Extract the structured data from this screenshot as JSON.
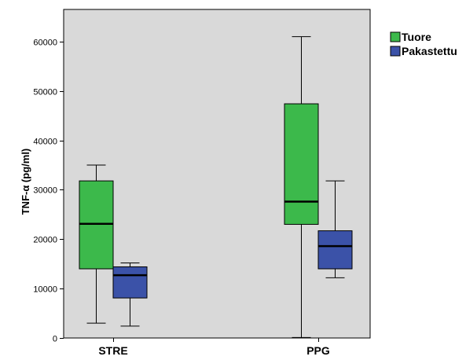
{
  "chart_data": {
    "type": "boxplot",
    "title": "",
    "xlabel": "",
    "ylabel": "TNF-α (pg/ml)",
    "ylim": [
      0,
      66500
    ],
    "yticks": [
      0,
      10000,
      20000,
      30000,
      40000,
      50000,
      60000
    ],
    "yticklabels": [
      "0",
      "10000",
      "20000",
      "30000",
      "40000",
      "50000",
      "60000"
    ],
    "categories": [
      "STRE",
      "PPG"
    ],
    "grid": false,
    "legend_position": "right",
    "series": [
      {
        "name": "Tuore",
        "color": "#3cb94b",
        "boxes": [
          {
            "whisker_low": 3000,
            "q1": 14000,
            "median": 23100,
            "q3": 31800,
            "whisker_high": 35000
          },
          {
            "whisker_low": 100,
            "q1": 23000,
            "median": 27600,
            "q3": 47400,
            "whisker_high": 61000
          }
        ]
      },
      {
        "name": "Pakastettu",
        "color": "#3b52a8",
        "boxes": [
          {
            "whisker_low": 2400,
            "q1": 8100,
            "median": 12700,
            "q3": 14400,
            "whisker_high": 15200
          },
          {
            "whisker_low": 12200,
            "q1": 14000,
            "median": 18600,
            "q3": 21700,
            "whisker_high": 31800
          }
        ]
      }
    ]
  },
  "colors": {
    "plot_background": "#d9d9d9",
    "frame": "#000000"
  }
}
